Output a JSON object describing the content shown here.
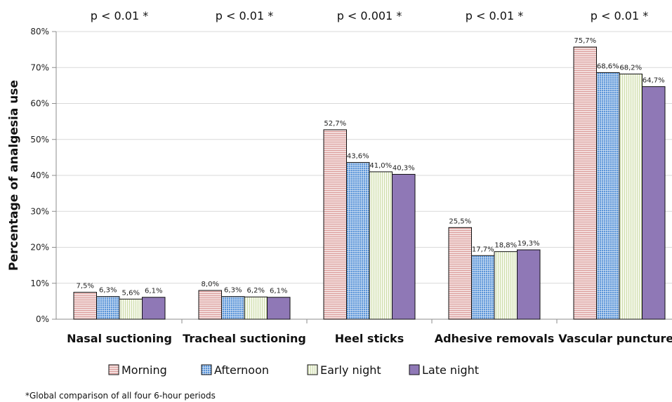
{
  "chart_data": {
    "type": "bar",
    "title": "",
    "xlabel": "",
    "ylabel": "Percentage of analgesia use",
    "ylim": [
      0,
      80
    ],
    "yticks": [
      "0%",
      "10%",
      "20%",
      "30%",
      "40%",
      "50%",
      "60%",
      "70%",
      "80%"
    ],
    "grid": true,
    "legend_position": "bottom",
    "categories": [
      "Nasal suctioning",
      "Tracheal suctioning",
      "Heel sticks",
      "Adhesive removals",
      "Vascular punctures"
    ],
    "pvalues": [
      "p < 0.01 *",
      "p < 0.01 *",
      "p < 0.001 *",
      "p < 0.01 *",
      "p < 0.01 *"
    ],
    "series": [
      {
        "name": "Morning",
        "values": [
          7.5,
          8.0,
          52.7,
          25.5,
          75.7
        ],
        "labels": [
          "7,5%",
          "8,0%",
          "52,7%",
          "25,5%",
          "75,7%"
        ],
        "color": "#f2dcdb",
        "pattern": "horizontal-lines"
      },
      {
        "name": "Afternoon",
        "values": [
          6.3,
          6.3,
          43.6,
          17.7,
          68.6
        ],
        "labels": [
          "6,3%",
          "6,3%",
          "43,6%",
          "17,7%",
          "68,6%"
        ],
        "color": "#538dd5",
        "pattern": "grid"
      },
      {
        "name": "Early night",
        "values": [
          5.6,
          6.2,
          41.0,
          18.8,
          68.2
        ],
        "labels": [
          "5,6%",
          "6,2%",
          "41,0%",
          "18,8%",
          "68,2%"
        ],
        "color": "#ebf1de",
        "pattern": "vertical-lines"
      },
      {
        "name": "Late night",
        "values": [
          6.1,
          6.1,
          40.3,
          19.3,
          64.7
        ],
        "labels": [
          "6,1%",
          "6,1%",
          "40,3%",
          "19,3%",
          "64,7%"
        ],
        "color": "#8f78b6",
        "pattern": "solid"
      }
    ]
  },
  "footnote": "*Global comparison of all four 6-hour periods"
}
